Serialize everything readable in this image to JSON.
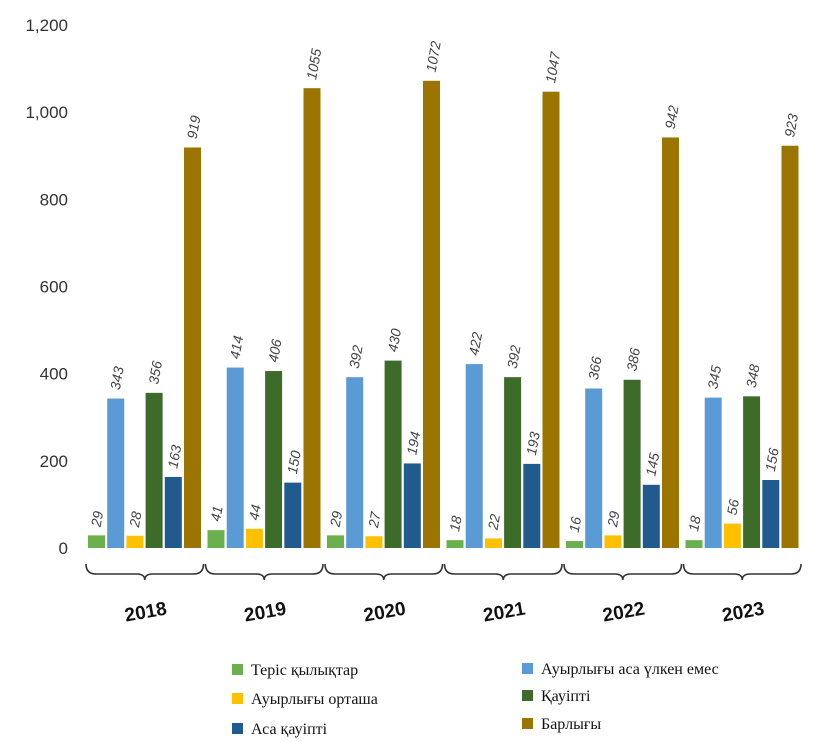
{
  "chart_data": {
    "type": "bar",
    "categories": [
      "2018",
      "2019",
      "2020",
      "2021",
      "2022",
      "2023"
    ],
    "ylim": [
      0,
      1200
    ],
    "yticks": [
      "0",
      "200",
      "400",
      "600",
      "800",
      "1,000",
      "1,200"
    ],
    "ytick_values": [
      0,
      200,
      400,
      600,
      800,
      1000,
      1200
    ],
    "grid": false,
    "legend_position": "bottom",
    "series": [
      {
        "name": "Теріс қылықтар",
        "color": "#6ab04c",
        "values": [
          29,
          41,
          29,
          18,
          16,
          18
        ]
      },
      {
        "name": "Ауырлығы аса үлкен емес",
        "color": "#5b9bd5",
        "values": [
          343,
          414,
          392,
          422,
          366,
          345
        ]
      },
      {
        "name": "Ауырлығы орташа",
        "color": "#ffc000",
        "values": [
          28,
          44,
          27,
          22,
          29,
          56
        ]
      },
      {
        "name": "Қауіпті",
        "color": "#3d6b2a",
        "values": [
          356,
          406,
          430,
          392,
          386,
          348
        ]
      },
      {
        "name": "Аса қауіпті",
        "color": "#215a8f",
        "values": [
          163,
          150,
          194,
          193,
          145,
          156
        ]
      },
      {
        "name": "Барлығы",
        "color": "#9c7400",
        "values": [
          919,
          1055,
          1072,
          1047,
          942,
          923
        ]
      }
    ]
  }
}
